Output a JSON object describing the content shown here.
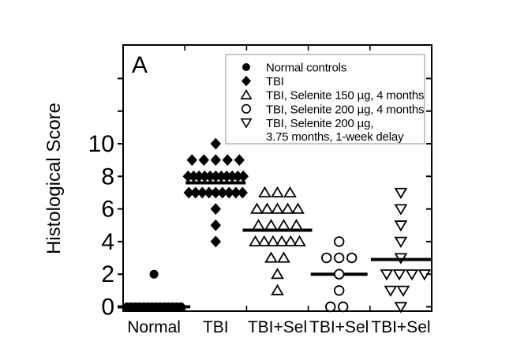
{
  "colors": {
    "foreground": "#000000",
    "background": "#ffffff",
    "legend_border": "#a8a8a8"
  },
  "chart_data": {
    "type": "scatter",
    "subtype": "dot-plot-with-medians",
    "panel_label": "A",
    "title": "",
    "xlabel": "",
    "ylabel": "Histological Score",
    "ylim": [
      0,
      16
    ],
    "yticks_labeled": [
      0,
      2,
      4,
      6,
      8,
      10
    ],
    "yticks_unlabeled": [
      12,
      14
    ],
    "grid": false,
    "legend_position": "top-right-inside",
    "categories": [
      "Normal",
      "TBI",
      "TBI+Sel",
      "TBI+Sel",
      "TBI+Sel"
    ],
    "series": [
      {
        "name": "Normal controls",
        "marker": "filled-circle",
        "category_index": 0,
        "median": 0,
        "median_halfwidth": 46,
        "rows": [
          {
            "value": 2,
            "n": 1
          },
          {
            "value": 0,
            "n": 14,
            "spread": 68
          }
        ]
      },
      {
        "name": "TBI",
        "marker": "filled-diamond",
        "category_index": 1,
        "median": 7.6,
        "median_halfwidth": 38,
        "rows": [
          {
            "value": 10,
            "n": 1
          },
          {
            "value": 9,
            "n": 5,
            "spread": 60
          },
          {
            "value": 8,
            "n": 11,
            "spread": 70
          },
          {
            "value": 7,
            "n": 9,
            "spread": 68
          },
          {
            "value": 6,
            "n": 1
          },
          {
            "value": 5,
            "n": 1
          },
          {
            "value": 4,
            "n": 1
          }
        ]
      },
      {
        "name": "TBI, Selenite 150 µg, 4 months",
        "marker": "open-triangle-up",
        "category_index": 2,
        "median": 4.7,
        "median_halfwidth": 44,
        "rows": [
          {
            "value": 7,
            "n": 3,
            "spread": 32
          },
          {
            "value": 6,
            "n": 5,
            "spread": 52
          },
          {
            "value": 5,
            "n": 4,
            "spread": 48
          },
          {
            "value": 4,
            "n": 6,
            "spread": 56
          },
          {
            "value": 3,
            "n": 2,
            "spread": 16
          },
          {
            "value": 2,
            "n": 1
          },
          {
            "value": 1,
            "n": 1
          }
        ]
      },
      {
        "name": "TBI, Selenite 200 µg, 4 months",
        "marker": "open-circle",
        "category_index": 3,
        "median": 2,
        "median_halfwidth": 36,
        "rows": [
          {
            "value": 4,
            "n": 1
          },
          {
            "value": 3,
            "n": 3,
            "spread": 32
          },
          {
            "value": 2,
            "n": 1
          },
          {
            "value": 1,
            "n": 1
          },
          {
            "value": 0,
            "n": 2,
            "spread": 16,
            "dx": -3
          }
        ]
      },
      {
        "name": "TBI, Selenite 200 µg, 3.75 months, 1-week delay",
        "marker": "open-triangle-down",
        "category_index": 4,
        "median": 2.9,
        "median_halfwidth": 38,
        "rows": [
          {
            "value": 7,
            "n": 1
          },
          {
            "value": 6,
            "n": 1
          },
          {
            "value": 5,
            "n": 1
          },
          {
            "value": 4,
            "n": 1
          },
          {
            "value": 3,
            "n": 1
          },
          {
            "value": 2,
            "n": 4,
            "spread": 48,
            "dx": 6
          },
          {
            "value": 1,
            "n": 2,
            "spread": 16,
            "dx": -5
          },
          {
            "value": 0,
            "n": 1
          }
        ]
      }
    ],
    "legend": {
      "entries": [
        {
          "marker": "filled-circle",
          "label": "Normal controls"
        },
        {
          "marker": "filled-diamond",
          "label": "TBI"
        },
        {
          "marker": "open-triangle-up",
          "label": "TBI, Selenite 150 µg, 4 months"
        },
        {
          "marker": "open-circle",
          "label": "TBI, Selenite 200 µg, 4 months"
        },
        {
          "marker": "open-triangle-down",
          "label": "TBI, Selenite 200 µg,",
          "label_line2": "3.75 months, 1-week delay"
        }
      ]
    }
  }
}
